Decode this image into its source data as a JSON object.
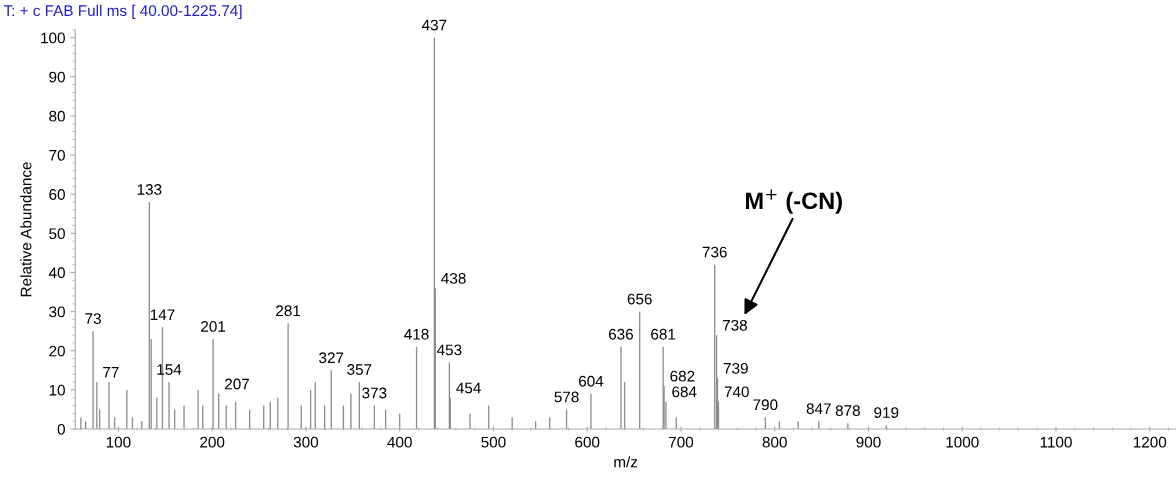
{
  "chart_data": {
    "type": "bar",
    "title": "T: + c FAB Full ms [ 40.00-1225.74]",
    "xlabel": "m/z",
    "ylabel": "Relative Abundance",
    "series": [
      {
        "color": "#8c8c8c",
        "x": [
          60,
          65,
          73,
          77,
          80,
          90,
          96,
          109,
          115,
          125,
          133,
          135,
          141,
          147,
          154,
          160,
          170,
          185,
          190,
          201,
          207,
          215,
          225,
          240,
          255,
          262,
          270,
          281,
          295,
          305,
          310,
          320,
          327,
          340,
          348,
          357,
          373,
          385,
          400,
          418,
          437,
          438,
          453,
          454,
          475,
          495,
          520,
          545,
          560,
          578,
          604,
          636,
          640,
          656,
          681,
          682,
          684,
          695,
          736,
          738,
          739,
          740,
          790,
          805,
          825,
          847,
          878,
          919
        ],
        "values": [
          3,
          2,
          25,
          12,
          5,
          12,
          3,
          10,
          3,
          2,
          58,
          23,
          8,
          26,
          12,
          5,
          6,
          10,
          6,
          23,
          9,
          6,
          7,
          5,
          6,
          7,
          8,
          27,
          6,
          10,
          12,
          6,
          15,
          6,
          9,
          12,
          6,
          5,
          4,
          21,
          100,
          36,
          17,
          8,
          4,
          6,
          3,
          2,
          3,
          5,
          9,
          21,
          12,
          30,
          21,
          11,
          7,
          3,
          42,
          24,
          13,
          7,
          3,
          2,
          2,
          2,
          1.5,
          1
        ]
      }
    ],
    "xlim": [
      54,
      1228
    ],
    "ylim": [
      0,
      102
    ],
    "xticks": [
      100,
      200,
      300,
      400,
      500,
      600,
      700,
      800,
      900,
      1000,
      1100,
      1200
    ],
    "yticks": [
      0,
      10,
      20,
      30,
      40,
      50,
      60,
      70,
      80,
      90,
      100
    ],
    "grid": false,
    "annotations": [
      {
        "text": "73",
        "x": 73,
        "y": 25
      },
      {
        "text": "77",
        "x": 77,
        "y": 12
      },
      {
        "text": "133",
        "x": 133,
        "y": 58
      },
      {
        "text": "147",
        "x": 147,
        "y": 26
      },
      {
        "text": "154",
        "x": 154,
        "y": 12
      },
      {
        "text": "201",
        "x": 201,
        "y": 23
      },
      {
        "text": "207",
        "x": 207,
        "y": 9
      },
      {
        "text": "281",
        "x": 281,
        "y": 27
      },
      {
        "text": "327",
        "x": 327,
        "y": 15
      },
      {
        "text": "357",
        "x": 357,
        "y": 12
      },
      {
        "text": "373",
        "x": 373,
        "y": 6
      },
      {
        "text": "418",
        "x": 418,
        "y": 21
      },
      {
        "text": "437",
        "x": 437,
        "y": 100
      },
      {
        "text": "438",
        "x": 438,
        "y": 36
      },
      {
        "text": "453",
        "x": 453,
        "y": 17
      },
      {
        "text": "454",
        "x": 454,
        "y": 8
      },
      {
        "text": "578",
        "x": 578,
        "y": 5
      },
      {
        "text": "604",
        "x": 604,
        "y": 9
      },
      {
        "text": "636",
        "x": 636,
        "y": 21
      },
      {
        "text": "656",
        "x": 656,
        "y": 30
      },
      {
        "text": "681",
        "x": 681,
        "y": 21
      },
      {
        "text": "682",
        "x": 682,
        "y": 11
      },
      {
        "text": "684",
        "x": 684,
        "y": 7
      },
      {
        "text": "736",
        "x": 736,
        "y": 42
      },
      {
        "text": "738",
        "x": 738,
        "y": 24
      },
      {
        "text": "739",
        "x": 739,
        "y": 13
      },
      {
        "text": "740",
        "x": 740,
        "y": 7
      },
      {
        "text": "790",
        "x": 790,
        "y": 3
      },
      {
        "text": "847",
        "x": 847,
        "y": 2
      },
      {
        "text": "878",
        "x": 878,
        "y": 1.5
      },
      {
        "text": "919",
        "x": 919,
        "y": 1
      },
      "M$^{+}$ (-CN)"
    ]
  }
}
